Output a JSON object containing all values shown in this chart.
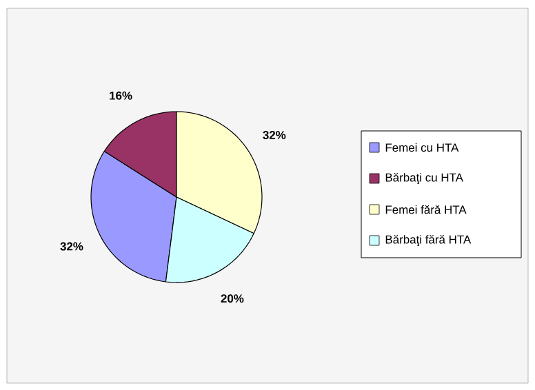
{
  "chart_data": {
    "type": "pie",
    "categories": [
      "Femei cu HTA",
      "Bărbaţi cu HTA",
      "Femei fără HTA",
      "Bărbaţi fără HTA"
    ],
    "values": [
      32,
      16,
      32,
      20
    ],
    "value_labels": [
      "32%",
      "16%",
      "32%",
      "20%"
    ],
    "colors": [
      "#9999ff",
      "#993366",
      "#ffffcc",
      "#ccffff"
    ],
    "legend": "right"
  }
}
